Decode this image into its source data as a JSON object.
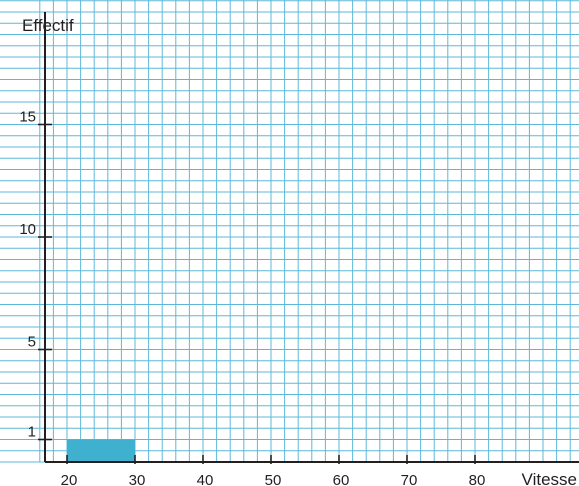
{
  "chart_data": {
    "type": "bar",
    "title": "",
    "xlabel": "Vitesse",
    "ylabel": "Effectif",
    "x_ticks": [
      20,
      30,
      40,
      50,
      60,
      70,
      80
    ],
    "y_ticks": [
      1,
      5,
      10,
      15
    ],
    "xlim": [
      17,
      97
    ],
    "ylim": [
      0,
      19.5
    ],
    "grid": true,
    "bars": [
      {
        "x_start": 20,
        "x_end": 30,
        "value": 1
      }
    ],
    "colors": {
      "bar": "#3fb1cf",
      "grid": "#5db8d8",
      "axis": "#231f20"
    }
  }
}
